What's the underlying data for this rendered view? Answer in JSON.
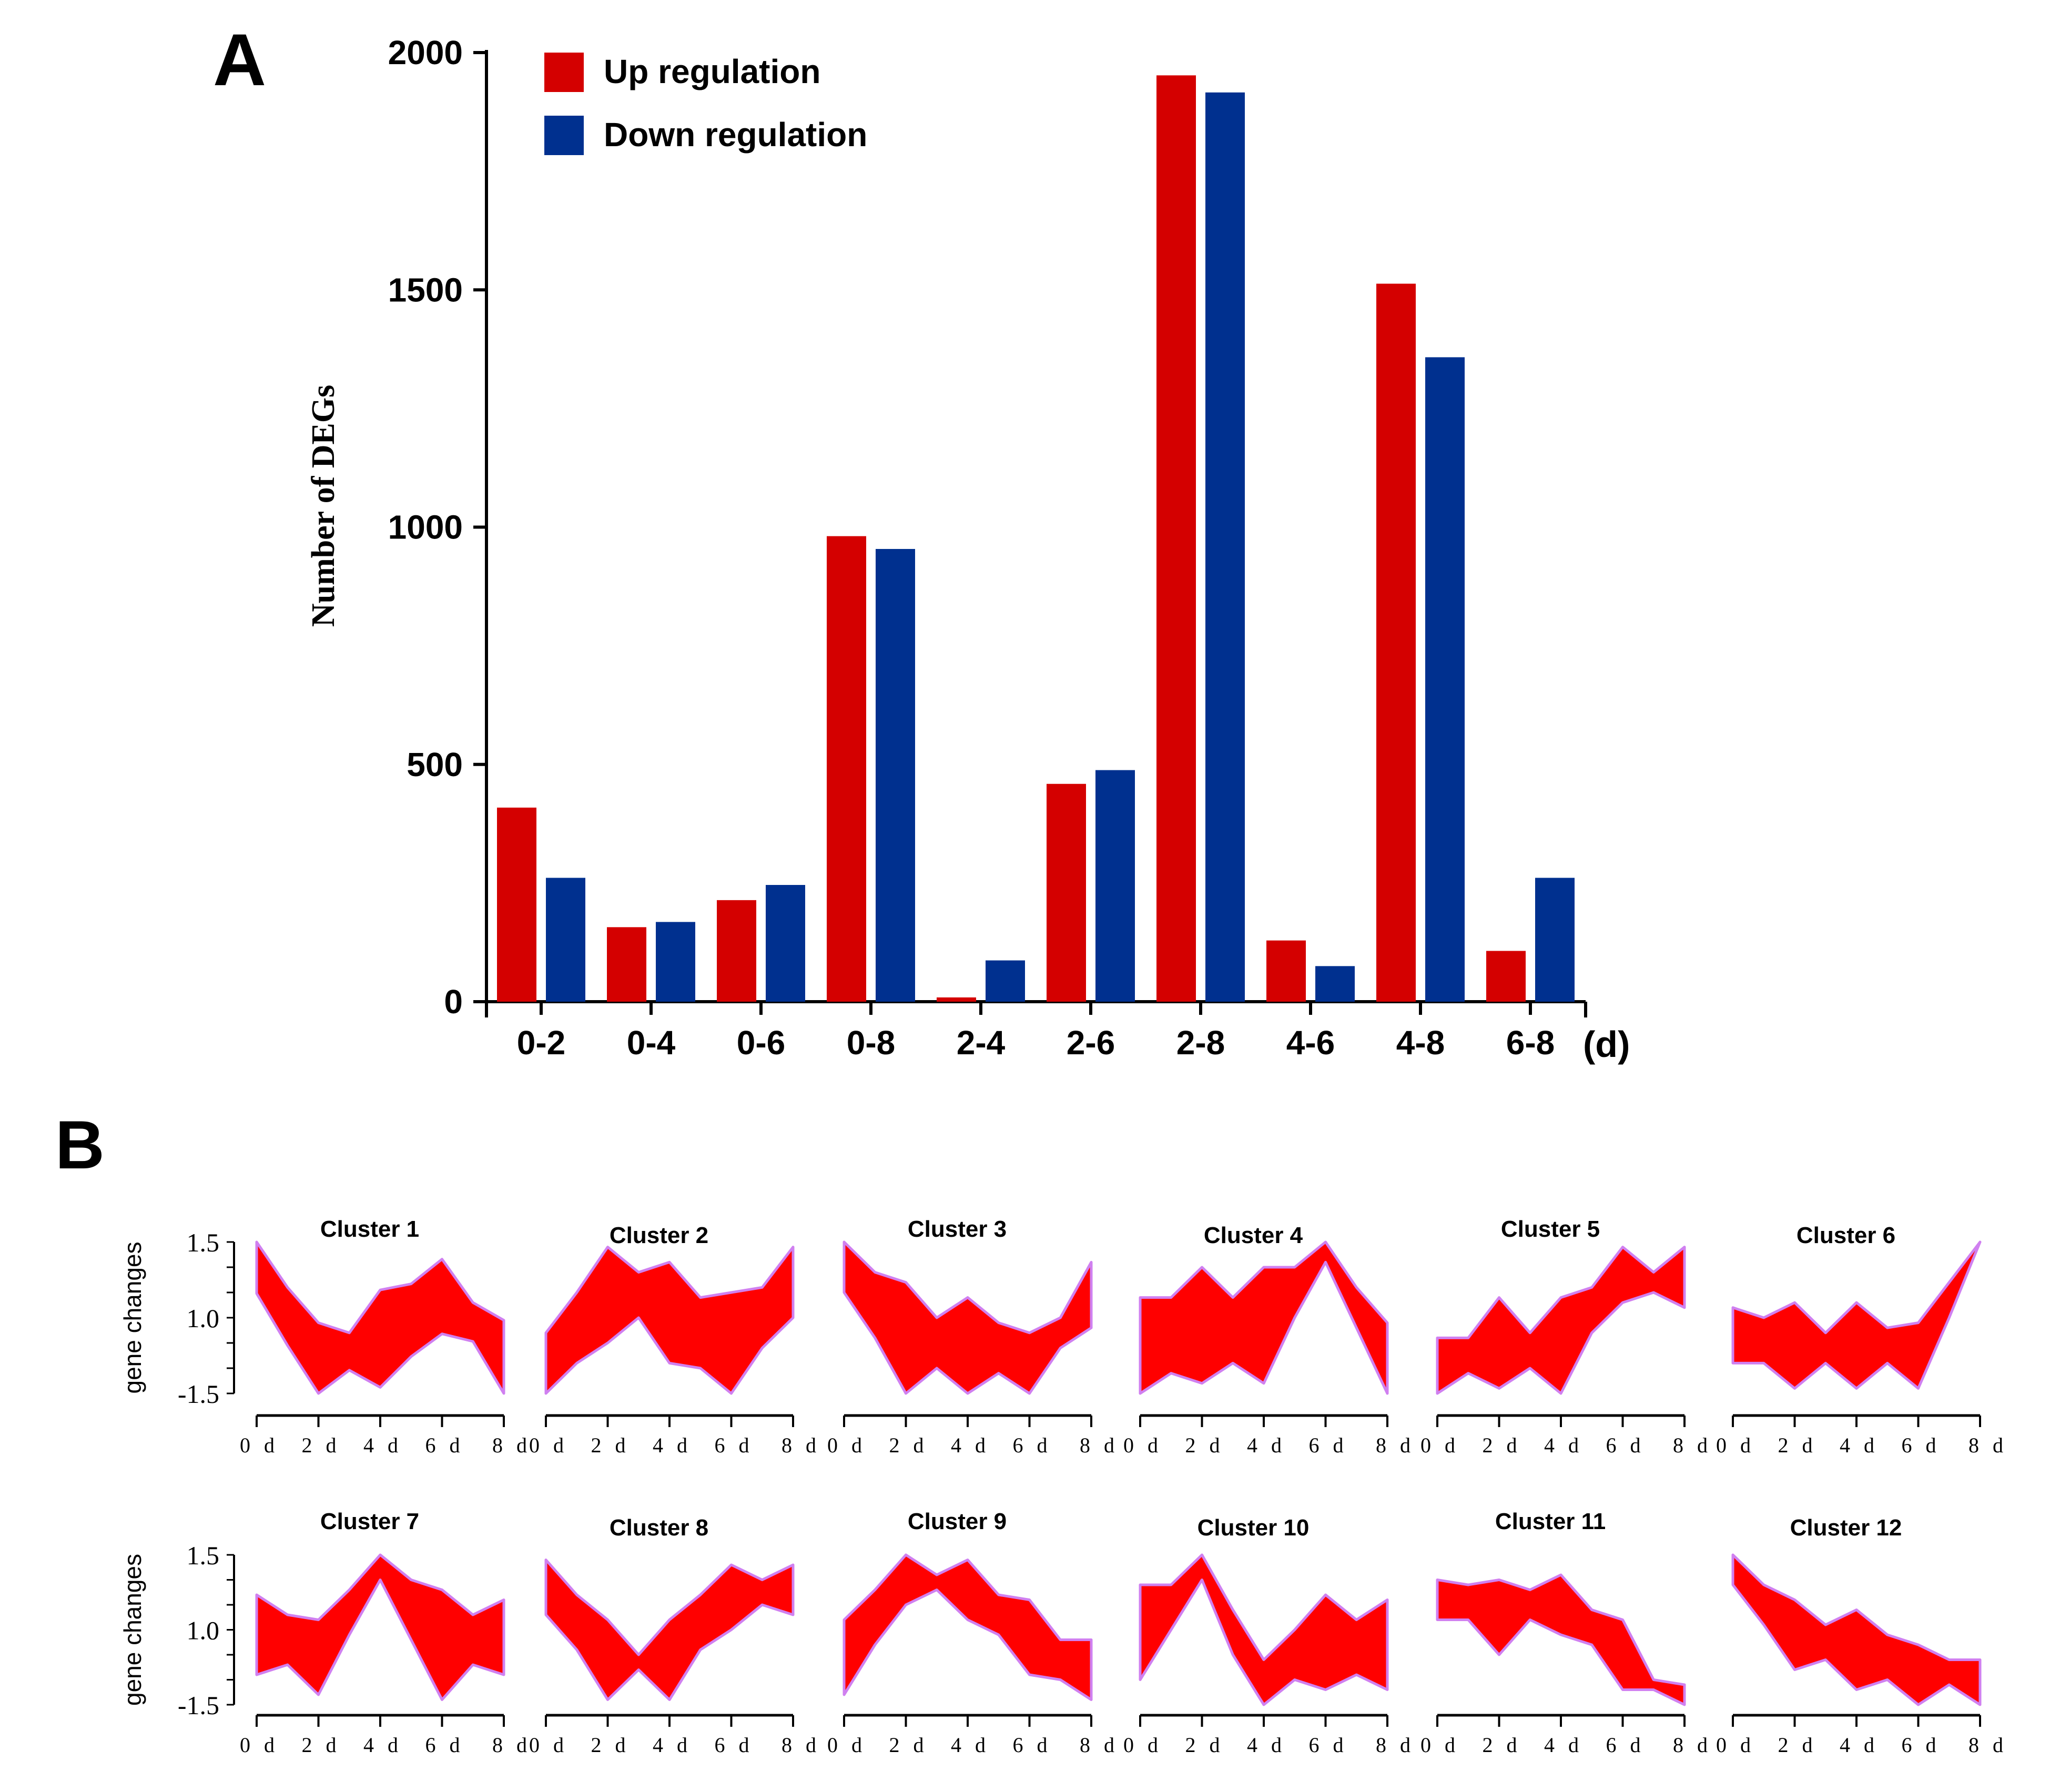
{
  "panel_labels": {
    "a": "A",
    "b": "B"
  },
  "chart_data": [
    {
      "type": "bar",
      "panel": "A",
      "categories": [
        "0-2",
        "0-4",
        "0-6",
        "0-8",
        "2-4",
        "2-6",
        "2-8",
        "4-6",
        "4-8",
        "6-8"
      ],
      "x_unit_label": "(d)",
      "ylabel": "Number of DEGs",
      "xlabel": "",
      "ylim": [
        0,
        2000
      ],
      "yticks": [
        0,
        500,
        1000,
        1500,
        2000
      ],
      "grid": false,
      "legend_position": "top-left",
      "series": [
        {
          "name": "Up regulation",
          "color": "#d40000",
          "values": [
            409,
            157,
            214,
            981,
            9,
            459,
            1952,
            129,
            1513,
            107
          ]
        },
        {
          "name": "Down regulation",
          "color": "#00308f",
          "values": [
            261,
            168,
            246,
            954,
            87,
            488,
            1916,
            75,
            1358,
            261
          ]
        }
      ]
    },
    {
      "type": "area",
      "panel": "B",
      "ylabel": "gene changes",
      "ytick_labels": [
        "1.5",
        "1.0",
        "-1.5"
      ],
      "ylim": [
        -1.5,
        1.5
      ],
      "x": [
        "0 d",
        "2 d",
        "4 d",
        "6 d",
        "8 d"
      ],
      "x_days": [
        0,
        1,
        2,
        3,
        4,
        5,
        6,
        7,
        8
      ],
      "band_color": "#ff0000",
      "edge_color": "#d080f0",
      "clusters": [
        {
          "title": "Cluster 1",
          "upper": [
            1.5,
            0.6,
            -0.1,
            -0.3,
            0.55,
            0.67,
            1.16,
            0.3,
            -0.05
          ],
          "lower": [
            0.48,
            -0.55,
            -1.5,
            -1.04,
            -1.38,
            -0.77,
            -0.32,
            -0.47,
            -1.5
          ]
        },
        {
          "title": "Cluster 2",
          "upper": [
            -0.3,
            0.5,
            1.4,
            0.9,
            1.1,
            0.4,
            0.5,
            0.6,
            1.4
          ],
          "lower": [
            -1.5,
            -0.9,
            -0.5,
            0.0,
            -0.9,
            -1.0,
            -1.5,
            -0.6,
            0.0
          ]
        },
        {
          "title": "Cluster 3",
          "upper": [
            1.5,
            0.9,
            0.7,
            0.0,
            0.4,
            -0.1,
            -0.3,
            0.0,
            1.1
          ],
          "lower": [
            0.5,
            -0.4,
            -1.5,
            -1.0,
            -1.5,
            -1.1,
            -1.5,
            -0.6,
            -0.2
          ]
        },
        {
          "title": "Cluster 4",
          "upper": [
            0.4,
            0.4,
            1.0,
            0.4,
            1.0,
            1.0,
            1.5,
            0.6,
            -0.1
          ],
          "lower": [
            -1.5,
            -1.1,
            -1.3,
            -0.9,
            -1.3,
            0.0,
            1.1,
            -0.2,
            -1.5
          ]
        },
        {
          "title": "Cluster 5",
          "upper": [
            -0.4,
            -0.4,
            0.4,
            -0.3,
            0.4,
            0.6,
            1.4,
            0.9,
            1.4
          ],
          "lower": [
            -1.5,
            -1.1,
            -1.4,
            -1.0,
            -1.5,
            -0.3,
            0.3,
            0.5,
            0.2
          ]
        },
        {
          "title": "Cluster 6",
          "upper": [
            0.2,
            0.0,
            0.3,
            -0.3,
            0.3,
            -0.2,
            -0.1,
            0.7,
            1.5
          ],
          "lower": [
            -0.9,
            -0.9,
            -1.4,
            -0.9,
            -1.4,
            -0.9,
            -1.4,
            0.0,
            1.5
          ]
        },
        {
          "title": "Cluster 7",
          "upper": [
            0.7,
            0.3,
            0.2,
            0.8,
            1.5,
            1.0,
            0.8,
            0.3,
            0.6
          ],
          "lower": [
            -0.9,
            -0.7,
            -1.3,
            -0.1,
            1.0,
            -0.2,
            -1.4,
            -0.7,
            -0.9
          ]
        },
        {
          "title": "Cluster 8",
          "upper": [
            1.4,
            0.7,
            0.2,
            -0.5,
            0.2,
            0.7,
            1.3,
            1.0,
            1.3
          ],
          "lower": [
            0.3,
            -0.4,
            -1.4,
            -0.8,
            -1.4,
            -0.4,
            0.0,
            0.5,
            0.3
          ]
        },
        {
          "title": "Cluster 9",
          "upper": [
            0.2,
            0.8,
            1.5,
            1.1,
            1.4,
            0.7,
            0.6,
            -0.2,
            -0.2
          ],
          "lower": [
            -1.3,
            -0.3,
            0.5,
            0.8,
            0.2,
            -0.1,
            -0.9,
            -1.0,
            -1.4
          ]
        },
        {
          "title": "Cluster 10",
          "upper": [
            0.9,
            0.9,
            1.5,
            0.4,
            -0.6,
            0.0,
            0.7,
            0.2,
            0.6
          ],
          "lower": [
            -1.0,
            0.0,
            1.0,
            -0.5,
            -1.5,
            -1.0,
            -1.2,
            -0.9,
            -1.2
          ]
        },
        {
          "title": "Cluster 11",
          "upper": [
            1.0,
            0.9,
            1.0,
            0.8,
            1.1,
            0.4,
            0.2,
            -1.0,
            -1.1
          ],
          "lower": [
            0.2,
            0.2,
            -0.5,
            0.2,
            -0.1,
            -0.3,
            -1.2,
            -1.2,
            -1.5
          ]
        },
        {
          "title": "Cluster 12",
          "upper": [
            1.5,
            0.9,
            0.6,
            0.1,
            0.4,
            -0.1,
            -0.3,
            -0.6,
            -0.6
          ],
          "lower": [
            0.9,
            0.1,
            -0.8,
            -0.6,
            -1.2,
            -1.0,
            -1.5,
            -1.1,
            -1.5
          ]
        }
      ]
    }
  ]
}
